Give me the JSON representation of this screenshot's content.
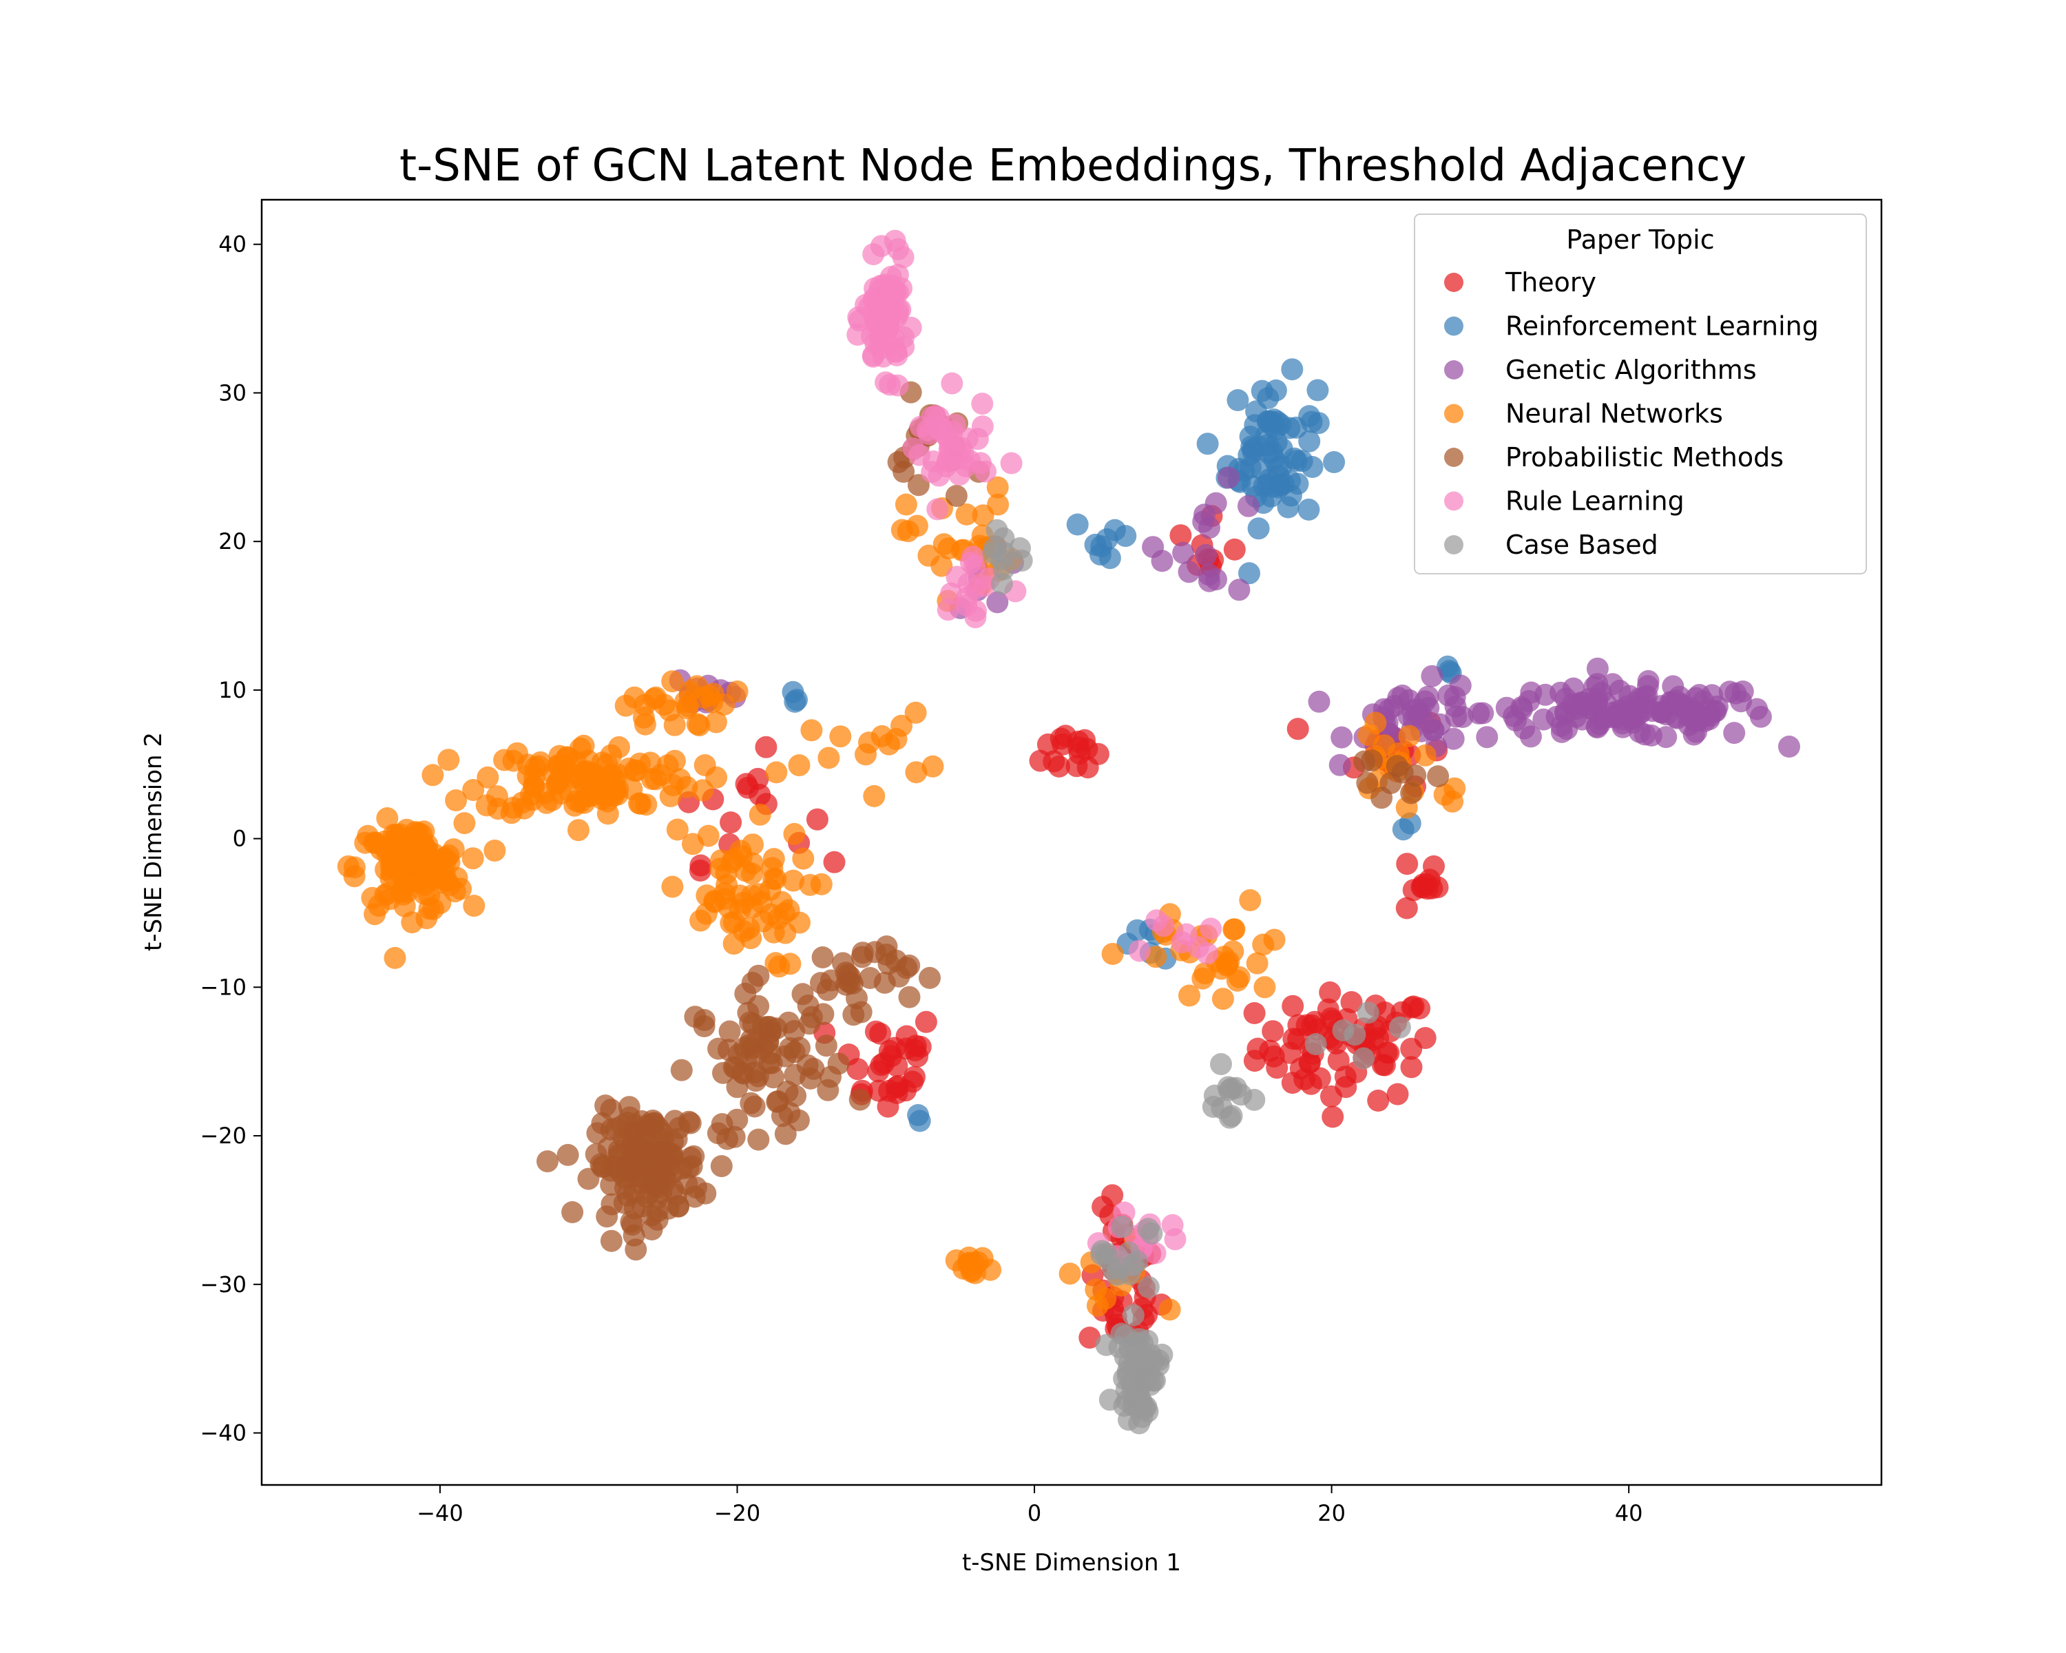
{
  "chart_data": {
    "type": "scatter",
    "title": "t-SNE of GCN Latent Node Embeddings, Threshold Adjacency",
    "xlabel": "t-SNE Dimension 1",
    "ylabel": "t-SNE Dimension 2",
    "xlim": [
      -52,
      57
    ],
    "ylim": [
      -43.5,
      43
    ],
    "xticks": [
      -40,
      -20,
      0,
      20,
      40
    ],
    "yticks": [
      -40,
      -30,
      -20,
      -10,
      0,
      10,
      20,
      30,
      40
    ],
    "grid": false,
    "legend": {
      "title": "Paper Topic",
      "placement": "top-right"
    },
    "series": [
      {
        "name": "Theory",
        "color": "#e41a1c",
        "clusters": [
          {
            "center": [
              21,
              -14
            ],
            "spread": [
              5,
              3
            ],
            "count": 70
          },
          {
            "center": [
              6,
              -30
            ],
            "spread": [
              2,
              4
            ],
            "count": 40
          },
          {
            "center": [
              26,
              -3
            ],
            "spread": [
              1,
              2
            ],
            "count": 12
          },
          {
            "center": [
              -10,
              -15
            ],
            "spread": [
              3,
              3
            ],
            "count": 30
          },
          {
            "center": [
              3,
              6
            ],
            "spread": [
              2,
              1.5
            ],
            "count": 15
          },
          {
            "center": [
              24,
              6
            ],
            "spread": [
              3,
              2
            ],
            "count": 15
          },
          {
            "center": [
              -20,
              2
            ],
            "spread": [
              4,
              3
            ],
            "count": 15
          },
          {
            "center": [
              12,
              19
            ],
            "spread": [
              2,
              2
            ],
            "count": 8
          }
        ]
      },
      {
        "name": "Reinforcement Learning",
        "color": "#377eb8",
        "clusters": [
          {
            "center": [
              16,
              26
            ],
            "spread": [
              2.5,
              4
            ],
            "count": 70
          },
          {
            "center": [
              5,
              20
            ],
            "spread": [
              2,
              1.5
            ],
            "count": 8
          },
          {
            "center": [
              -16,
              10
            ],
            "spread": [
              0.5,
              0.5
            ],
            "count": 3
          },
          {
            "center": [
              -8,
              -19
            ],
            "spread": [
              0.3,
              0.3
            ],
            "count": 2
          },
          {
            "center": [
              25,
              1
            ],
            "spread": [
              0.3,
              0.3
            ],
            "count": 2
          },
          {
            "center": [
              8,
              -7
            ],
            "spread": [
              2,
              1
            ],
            "count": 6
          },
          {
            "center": [
              28,
              11
            ],
            "spread": [
              0.5,
              0.5
            ],
            "count": 3
          }
        ]
      },
      {
        "name": "Genetic Algorithms",
        "color": "#984ea3",
        "clusters": [
          {
            "center": [
              40,
              8.5
            ],
            "spread": [
              8,
              1.5
            ],
            "count": 130
          },
          {
            "center": [
              26,
              8
            ],
            "spread": [
              4,
              2
            ],
            "count": 40
          },
          {
            "center": [
              -22,
              10
            ],
            "spread": [
              2,
              1
            ],
            "count": 10
          },
          {
            "center": [
              12,
              20
            ],
            "spread": [
              3,
              3
            ],
            "count": 15
          },
          {
            "center": [
              -3,
              18
            ],
            "spread": [
              2,
              2
            ],
            "count": 8
          }
        ]
      },
      {
        "name": "Neural Networks",
        "color": "#ff7f00",
        "clusters": [
          {
            "center": [
              -42,
              -2
            ],
            "spread": [
              3,
              2.5
            ],
            "count": 120
          },
          {
            "center": [
              -30,
              4
            ],
            "spread": [
              6,
              2
            ],
            "count": 110
          },
          {
            "center": [
              -20,
              -4
            ],
            "spread": [
              4,
              4
            ],
            "count": 60
          },
          {
            "center": [
              -24,
              9
            ],
            "spread": [
              3,
              1.5
            ],
            "count": 25
          },
          {
            "center": [
              -5,
              20
            ],
            "spread": [
              3,
              3
            ],
            "count": 25
          },
          {
            "center": [
              12,
              -8
            ],
            "spread": [
              5,
              3
            ],
            "count": 30
          },
          {
            "center": [
              -4,
              -29
            ],
            "spread": [
              1,
              0.7
            ],
            "count": 12
          },
          {
            "center": [
              5,
              -30
            ],
            "spread": [
              3,
              3
            ],
            "count": 10
          },
          {
            "center": [
              25,
              5
            ],
            "spread": [
              4,
              3
            ],
            "count": 20
          },
          {
            "center": [
              -12,
              6
            ],
            "spread": [
              4,
              2
            ],
            "count": 15
          }
        ]
      },
      {
        "name": "Probabilistic Methods",
        "color": "#a65628",
        "clusters": [
          {
            "center": [
              -26,
              -22
            ],
            "spread": [
              3,
              3
            ],
            "count": 150
          },
          {
            "center": [
              -18,
              -15
            ],
            "spread": [
              4,
              4
            ],
            "count": 80
          },
          {
            "center": [
              -12,
              -9
            ],
            "spread": [
              3,
              2
            ],
            "count": 30
          },
          {
            "center": [
              -7,
              26
            ],
            "spread": [
              2,
              3
            ],
            "count": 20
          },
          {
            "center": [
              24,
              4
            ],
            "spread": [
              3,
              2
            ],
            "count": 10
          }
        ]
      },
      {
        "name": "Rule Learning",
        "color": "#f781bf",
        "clusters": [
          {
            "center": [
              -10,
              35
            ],
            "spread": [
              1.2,
              3
            ],
            "count": 80
          },
          {
            "center": [
              -6,
              26
            ],
            "spread": [
              2.5,
              3
            ],
            "count": 40
          },
          {
            "center": [
              -4,
              17
            ],
            "spread": [
              2,
              3
            ],
            "count": 15
          },
          {
            "center": [
              7,
              -27
            ],
            "spread": [
              2,
              2
            ],
            "count": 15
          },
          {
            "center": [
              10,
              -7
            ],
            "spread": [
              2,
              1
            ],
            "count": 8
          }
        ]
      },
      {
        "name": "Case Based",
        "color": "#999999",
        "clusters": [
          {
            "center": [
              7,
              -36
            ],
            "spread": [
              1.2,
              2.5
            ],
            "count": 60
          },
          {
            "center": [
              6,
              -28
            ],
            "spread": [
              1.5,
              2
            ],
            "count": 15
          },
          {
            "center": [
              13,
              -17
            ],
            "spread": [
              2,
              2
            ],
            "count": 12
          },
          {
            "center": [
              -2,
              19
            ],
            "spread": [
              1.5,
              2
            ],
            "count": 10
          },
          {
            "center": [
              22,
              -12
            ],
            "spread": [
              2,
              2
            ],
            "count": 6
          }
        ]
      }
    ]
  }
}
